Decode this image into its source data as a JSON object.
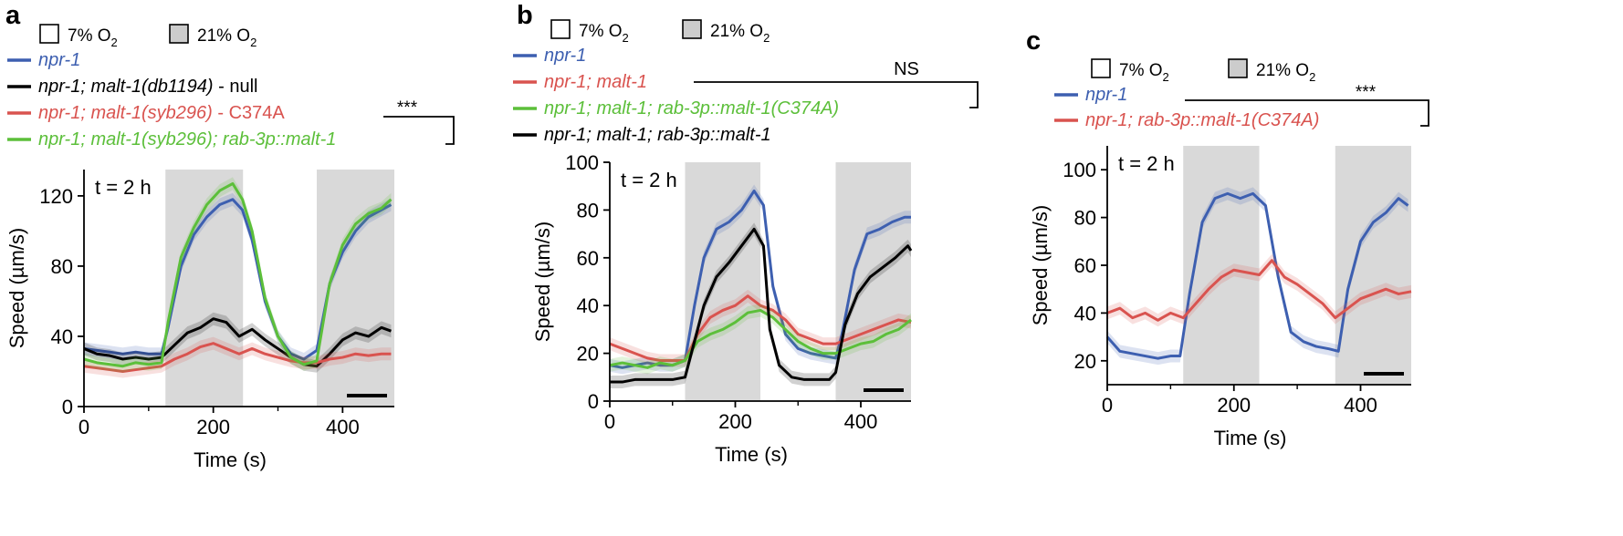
{
  "figure": {
    "panels": [
      "a",
      "b",
      "c"
    ],
    "legend_box_labels": [
      "7% O",
      "21% O"
    ],
    "subscript_2": "2"
  },
  "colors": {
    "blue": "#3d5fb0",
    "black": "#000000",
    "red": "#d9534f",
    "green": "#5cbf3a",
    "shade": "#d9d9d9"
  },
  "chart_data": [
    {
      "panel": "a",
      "type": "line",
      "title": "",
      "xlabel": "Time (s)",
      "ylabel": "Speed (µm/s)",
      "xlim": [
        0,
        480
      ],
      "ylim": [
        0,
        135
      ],
      "xticks": [
        0,
        200,
        400
      ],
      "yticks": [
        0,
        40,
        80,
        120
      ],
      "annotation": "t = 2 h",
      "significance": "***",
      "shaded_intervals": [
        [
          126,
          246
        ],
        [
          360,
          480
        ]
      ],
      "legend": [
        {
          "name": "npr-1",
          "suffix": "",
          "color": "blue"
        },
        {
          "name": "npr-1; malt-1(db1194)",
          "suffix": " - null",
          "color": "black"
        },
        {
          "name": "npr-1; malt-1(syb296)",
          "suffix": " - C374A",
          "color": "red"
        },
        {
          "name": "npr-1; malt-1(syb296); rab-3p::malt-1",
          "suffix": "",
          "color": "green"
        }
      ],
      "series": [
        {
          "name": "npr-1",
          "color": "blue",
          "x": [
            0,
            20,
            40,
            60,
            80,
            100,
            120,
            130,
            150,
            170,
            190,
            210,
            230,
            245,
            260,
            280,
            300,
            320,
            340,
            360,
            380,
            400,
            420,
            440,
            460,
            475
          ],
          "y": [
            33,
            32,
            31,
            30,
            31,
            30,
            30,
            45,
            80,
            98,
            108,
            115,
            118,
            112,
            95,
            60,
            40,
            30,
            27,
            32,
            70,
            88,
            100,
            108,
            112,
            115
          ]
        },
        {
          "name": "npr-1; malt-1(db1194)",
          "color": "black",
          "x": [
            0,
            20,
            40,
            60,
            80,
            100,
            120,
            140,
            160,
            180,
            200,
            220,
            240,
            260,
            280,
            300,
            320,
            340,
            360,
            380,
            400,
            420,
            440,
            460,
            475
          ],
          "y": [
            33,
            30,
            29,
            27,
            28,
            27,
            28,
            35,
            42,
            45,
            50,
            48,
            40,
            44,
            38,
            33,
            28,
            24,
            23,
            30,
            38,
            42,
            40,
            45,
            43
          ]
        },
        {
          "name": "npr-1; malt-1(syb296)",
          "color": "red",
          "x": [
            0,
            20,
            40,
            60,
            80,
            100,
            120,
            140,
            160,
            180,
            200,
            220,
            240,
            260,
            280,
            300,
            320,
            340,
            360,
            380,
            400,
            420,
            440,
            460,
            475
          ],
          "y": [
            23,
            22,
            21,
            20,
            21,
            22,
            23,
            27,
            30,
            34,
            36,
            33,
            30,
            33,
            30,
            28,
            26,
            25,
            25,
            27,
            28,
            30,
            29,
            30,
            30
          ]
        },
        {
          "name": "npr-1; malt-1(syb296); rab-3p::malt-1",
          "color": "green",
          "x": [
            0,
            20,
            40,
            60,
            80,
            100,
            120,
            130,
            150,
            170,
            190,
            210,
            230,
            245,
            260,
            280,
            300,
            320,
            340,
            360,
            380,
            400,
            420,
            440,
            460,
            475
          ],
          "y": [
            27,
            25,
            24,
            23,
            25,
            24,
            25,
            48,
            85,
            102,
            115,
            123,
            127,
            118,
            100,
            62,
            40,
            28,
            24,
            26,
            70,
            92,
            104,
            110,
            113,
            118
          ]
        }
      ]
    },
    {
      "panel": "b",
      "type": "line",
      "title": "",
      "xlabel": "Time (s)",
      "ylabel": "Speed (µm/s)",
      "xlim": [
        0,
        480
      ],
      "ylim": [
        0,
        100
      ],
      "xticks": [
        0,
        200,
        400
      ],
      "yticks": [
        0,
        20,
        40,
        60,
        80,
        100
      ],
      "annotation": "t = 2 h",
      "significance": "NS",
      "shaded_intervals": [
        [
          120,
          240
        ],
        [
          360,
          480
        ]
      ],
      "legend": [
        {
          "name": "npr-1",
          "suffix": "",
          "color": "blue"
        },
        {
          "name": "npr-1; malt-1",
          "suffix": "",
          "color": "red"
        },
        {
          "name": "npr-1; malt-1; rab-3p::malt-1(C374A)",
          "suffix": "",
          "color": "green"
        },
        {
          "name": "npr-1; malt-1; rab-3p::malt-1",
          "suffix": "",
          "color": "black"
        }
      ],
      "series": [
        {
          "name": "npr-1",
          "color": "blue",
          "x": [
            0,
            20,
            40,
            60,
            80,
            100,
            120,
            135,
            150,
            170,
            190,
            210,
            230,
            245,
            260,
            280,
            300,
            320,
            340,
            360,
            370,
            390,
            410,
            430,
            450,
            470,
            480
          ],
          "y": [
            15,
            14,
            15,
            16,
            15,
            15,
            17,
            40,
            60,
            72,
            75,
            80,
            88,
            82,
            48,
            28,
            22,
            20,
            19,
            18,
            28,
            55,
            70,
            72,
            75,
            77,
            77
          ]
        },
        {
          "name": "npr-1; malt-1",
          "color": "red",
          "x": [
            0,
            20,
            40,
            60,
            80,
            100,
            120,
            140,
            160,
            180,
            200,
            220,
            240,
            260,
            280,
            300,
            320,
            340,
            360,
            380,
            400,
            420,
            440,
            460,
            480
          ],
          "y": [
            24,
            22,
            20,
            18,
            17,
            17,
            17,
            28,
            35,
            38,
            40,
            44,
            40,
            38,
            34,
            28,
            26,
            24,
            24,
            26,
            28,
            30,
            32,
            34,
            33
          ]
        },
        {
          "name": "npr-1; malt-1; rab-3p::malt-1(C374A)",
          "color": "green",
          "x": [
            0,
            20,
            40,
            60,
            80,
            100,
            120,
            140,
            160,
            180,
            200,
            220,
            240,
            260,
            280,
            300,
            320,
            340,
            360,
            380,
            400,
            420,
            440,
            460,
            480
          ],
          "y": [
            15,
            16,
            15,
            14,
            16,
            15,
            17,
            25,
            28,
            30,
            33,
            37,
            38,
            35,
            30,
            25,
            22,
            20,
            20,
            22,
            24,
            25,
            28,
            30,
            34
          ]
        },
        {
          "name": "npr-1; malt-1; rab-3p::malt-1",
          "color": "black",
          "x": [
            0,
            20,
            40,
            60,
            80,
            100,
            120,
            135,
            150,
            170,
            190,
            210,
            230,
            245,
            255,
            270,
            290,
            310,
            330,
            350,
            360,
            375,
            395,
            415,
            435,
            455,
            475,
            480
          ],
          "y": [
            8,
            8,
            9,
            9,
            9,
            9,
            10,
            25,
            40,
            52,
            58,
            65,
            72,
            65,
            30,
            15,
            10,
            9,
            9,
            9,
            12,
            32,
            45,
            52,
            56,
            60,
            65,
            63
          ]
        }
      ]
    },
    {
      "panel": "c",
      "type": "line",
      "title": "",
      "xlabel": "Time (s)",
      "ylabel": "Speed (µm/s)",
      "xlim": [
        0,
        480
      ],
      "ylim": [
        10,
        110
      ],
      "xticks": [
        0,
        200,
        400
      ],
      "yticks": [
        20,
        40,
        60,
        80,
        100
      ],
      "annotation": "t = 2 h",
      "significance": "***",
      "shaded_intervals": [
        [
          120,
          240
        ],
        [
          360,
          480
        ]
      ],
      "legend": [
        {
          "name": "npr-1",
          "suffix": "",
          "color": "blue"
        },
        {
          "name": "npr-1; rab-3p::malt-1(C374A)",
          "suffix": "",
          "color": "red"
        }
      ],
      "series": [
        {
          "name": "npr-1",
          "color": "blue",
          "x": [
            0,
            20,
            40,
            60,
            80,
            100,
            115,
            130,
            150,
            170,
            190,
            210,
            230,
            250,
            270,
            290,
            310,
            330,
            350,
            365,
            380,
            400,
            420,
            440,
            460,
            475
          ],
          "y": [
            30,
            24,
            23,
            22,
            21,
            22,
            22,
            48,
            78,
            88,
            90,
            88,
            90,
            85,
            55,
            32,
            28,
            26,
            25,
            24,
            50,
            70,
            78,
            82,
            88,
            85
          ]
        },
        {
          "name": "npr-1; rab-3p::malt-1(C374A)",
          "color": "red",
          "x": [
            0,
            20,
            40,
            60,
            80,
            100,
            120,
            140,
            160,
            180,
            200,
            220,
            240,
            260,
            280,
            300,
            320,
            340,
            360,
            380,
            400,
            420,
            440,
            460,
            480
          ],
          "y": [
            40,
            42,
            38,
            40,
            37,
            40,
            38,
            44,
            50,
            55,
            58,
            57,
            56,
            62,
            55,
            52,
            48,
            44,
            38,
            42,
            46,
            48,
            50,
            48,
            49
          ]
        }
      ]
    }
  ]
}
